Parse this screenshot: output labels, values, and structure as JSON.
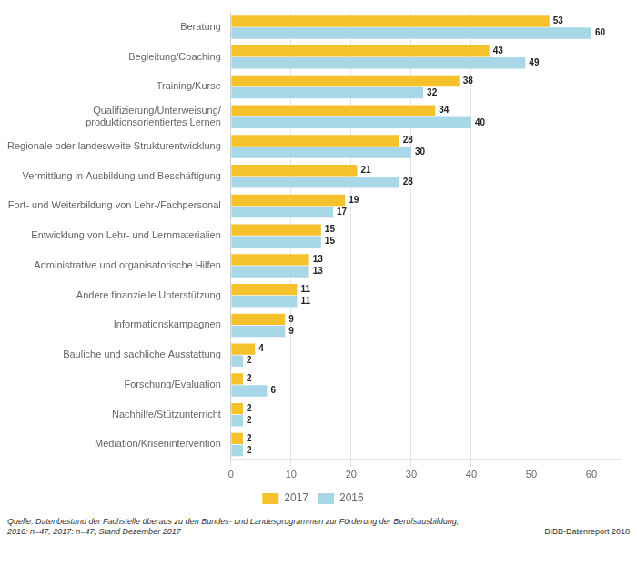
{
  "chart_data": {
    "type": "bar",
    "orientation": "horizontal",
    "categories": [
      "Beratung",
      "Begleitung/Coaching",
      "Training/Kurse",
      "Qualifizierung/Unterweisung/\nproduktionsorientiertes Lernen",
      "Regionale oder landesweite Strukturentwicklung",
      "Vermittlung in Ausbildung und Beschäftigung",
      "Fort- und Weiterbildung von Lehr-/Fachpersonal",
      "Entwicklung von Lehr- und Lernmaterialien",
      "Administrative und organisatorische Hilfen",
      "Andere finanzielle Unterstützung",
      "Informationskampagnen",
      "Bauliche und sachliche Ausstattung",
      "Forschung/Evaluation",
      "Nachhilfe/Stützunterricht",
      "Mediation/Krisenintervention"
    ],
    "series": [
      {
        "name": "2017",
        "color": "#F5C22B",
        "values": [
          53,
          43,
          38,
          34,
          28,
          21,
          19,
          15,
          13,
          11,
          9,
          4,
          2,
          2,
          2
        ]
      },
      {
        "name": "2016",
        "color": "#A8D8E8",
        "values": [
          60,
          49,
          32,
          40,
          30,
          28,
          17,
          15,
          13,
          11,
          9,
          2,
          6,
          2,
          2
        ]
      }
    ],
    "xlim": [
      0,
      65
    ],
    "xticks": [
      0,
      10,
      20,
      30,
      40,
      50,
      60
    ],
    "grid": true,
    "legend": "bottom",
    "data_labels": true,
    "annotations": [
      "Quelle: Datenbestand der Fachstelle überaus zu den Bundes- und Landesprogrammen zur Förderung der Berufsausbildung,\n2016: n=47, 2017: n=47, Stand Dezember 2017",
      "BIBB-Datenreport 2018"
    ]
  }
}
